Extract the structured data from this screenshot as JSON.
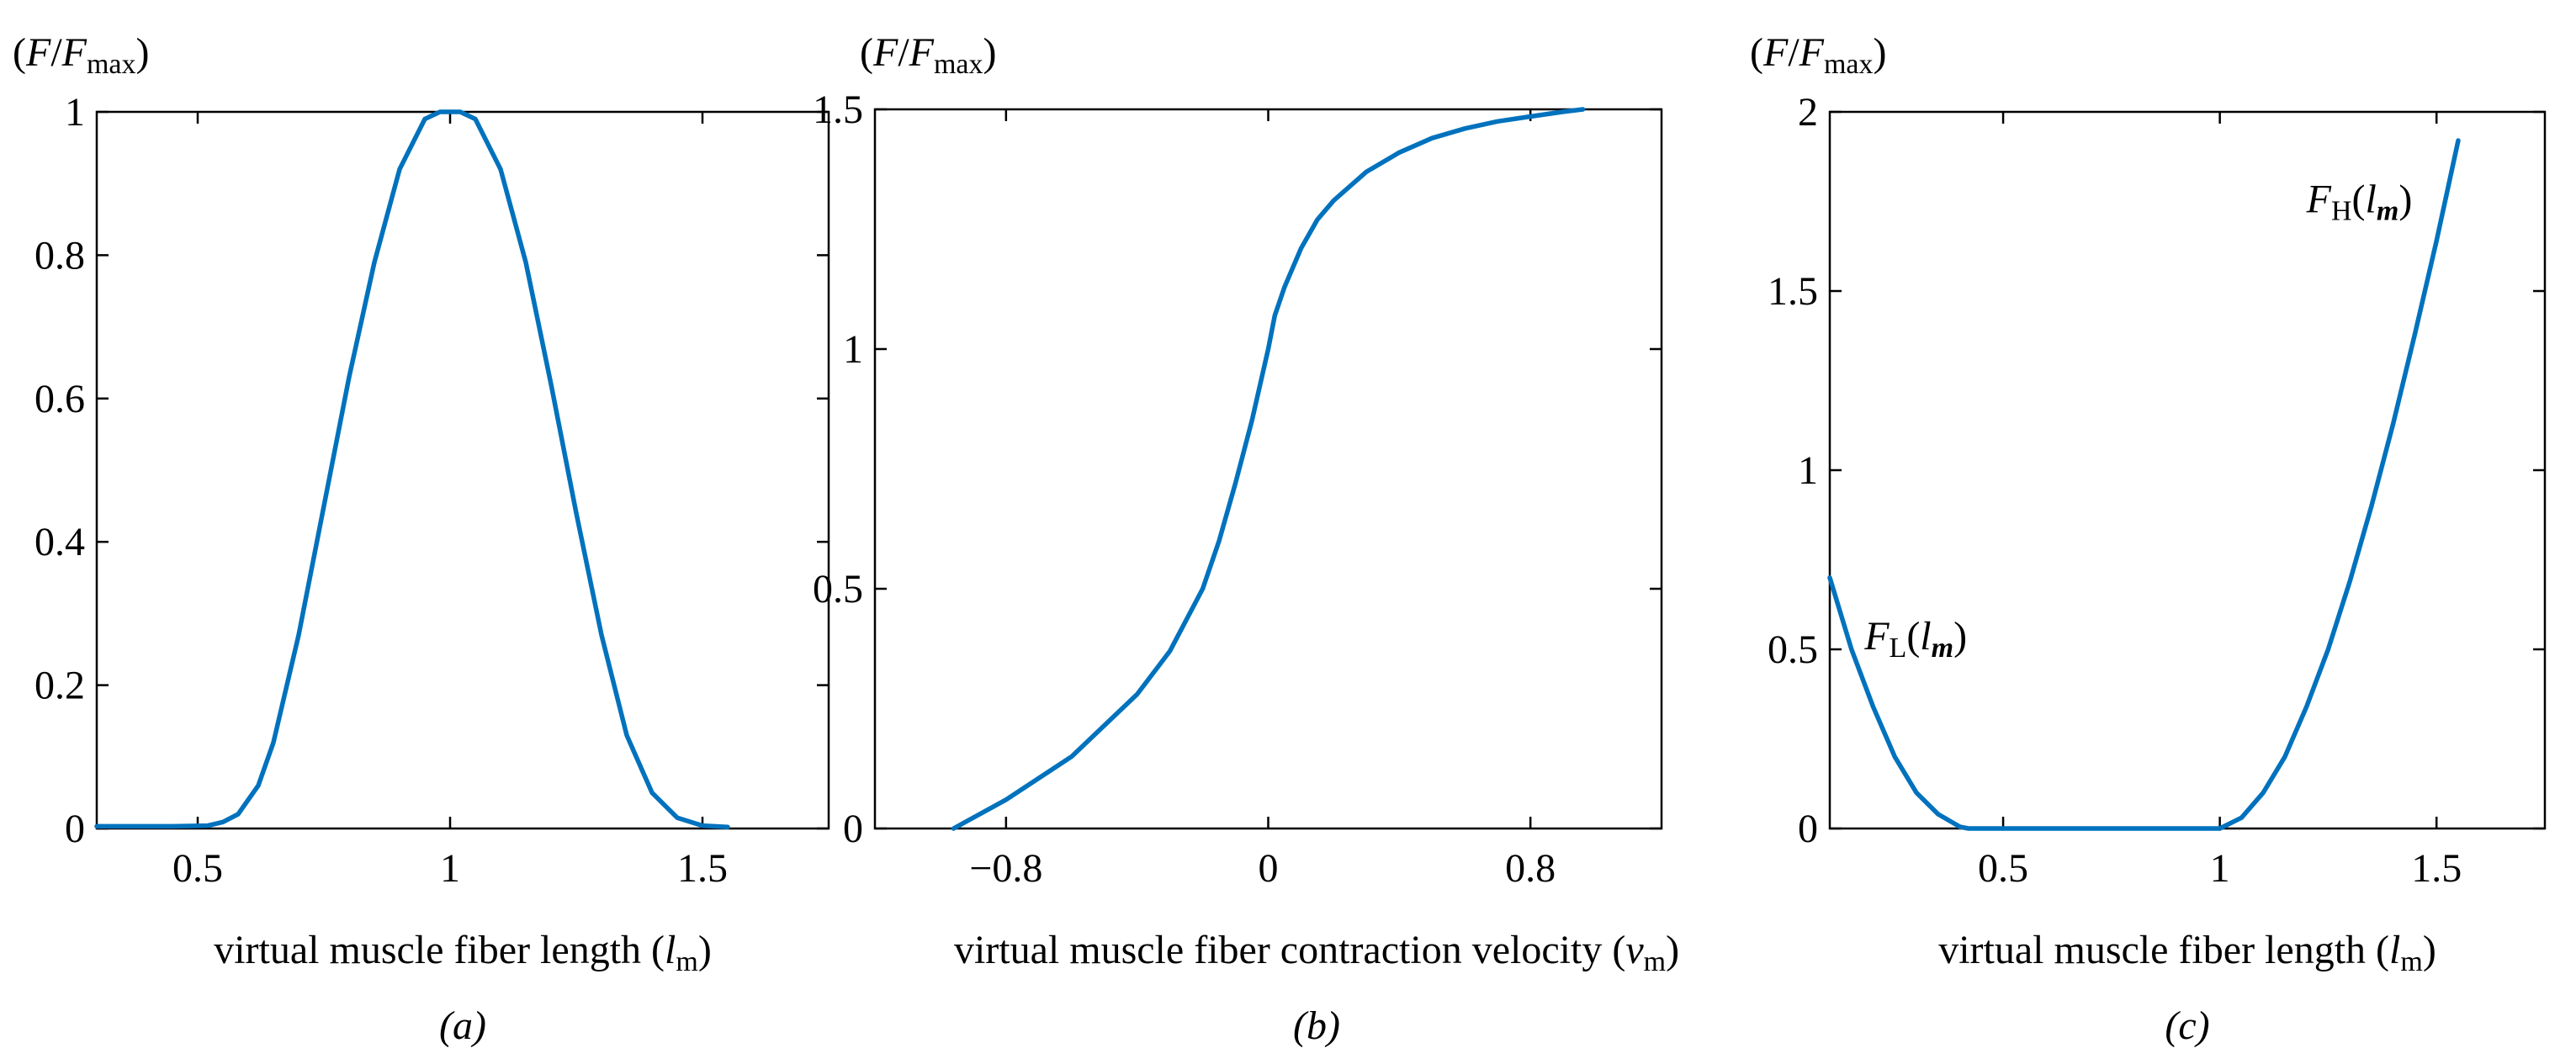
{
  "chart_data": [
    {
      "type": "line",
      "panel": "(a)",
      "ylabel_html": "(<tspan font-style=\"italic\">F</tspan>/<tspan font-style=\"italic\">F</tspan><tspan font-size=\"34\" dy=\"9\">max</tspan><tspan dy=\"-9\">)</tspan>",
      "xlabel_html": "virtual muscle fiber length (<tspan font-style=\"italic\">l</tspan><tspan font-size=\"34\" dy=\"9\">m</tspan><tspan dy=\"-9\">)</tspan>",
      "xlim": [
        0.3,
        1.75
      ],
      "ylim": [
        0,
        1.0
      ],
      "xticks": [
        0.5,
        1,
        1.5
      ],
      "xtick_labels": [
        "0.5",
        "1",
        "1.5"
      ],
      "yticks": [
        0,
        0.2,
        0.4,
        0.6,
        0.8,
        1
      ],
      "ytick_labels": [
        "0",
        "0.2",
        "0.4",
        "0.6",
        "0.8",
        "1"
      ],
      "series": [
        {
          "color": "#0072BD",
          "x": [
            0.3,
            0.45,
            0.52,
            0.55,
            0.58,
            0.62,
            0.65,
            0.7,
            0.75,
            0.8,
            0.85,
            0.9,
            0.95,
            0.98,
            1.02,
            1.05,
            1.1,
            1.15,
            1.2,
            1.25,
            1.3,
            1.35,
            1.4,
            1.45,
            1.5,
            1.55
          ],
          "y": [
            0.003,
            0.003,
            0.004,
            0.009,
            0.02,
            0.06,
            0.12,
            0.27,
            0.45,
            0.63,
            0.79,
            0.92,
            0.99,
            1.0,
            1.0,
            0.99,
            0.92,
            0.79,
            0.62,
            0.44,
            0.27,
            0.13,
            0.05,
            0.015,
            0.004,
            0.002
          ]
        }
      ]
    },
    {
      "type": "line",
      "panel": "(b)",
      "ylabel_html": "(<tspan font-style=\"italic\">F</tspan>/<tspan font-style=\"italic\">F</tspan><tspan font-size=\"34\" dy=\"9\">max</tspan><tspan dy=\"-9\">)</tspan>",
      "xlabel_html": "virtual muscle fiber contraction velocity (<tspan font-style=\"italic\">v</tspan><tspan font-size=\"34\" dy=\"9\">m</tspan><tspan dy=\"-9\">)</tspan>",
      "xlim": [
        -1.2,
        1.2
      ],
      "ylim": [
        0,
        1.5
      ],
      "xticks": [
        -0.8,
        0,
        0.8
      ],
      "xtick_labels": [
        "−0.8",
        "0",
        "0.8"
      ],
      "yticks": [
        0,
        0.5,
        1,
        1.5
      ],
      "ytick_labels": [
        "0",
        "0.5",
        "1",
        "1.5"
      ],
      "series": [
        {
          "color": "#0072BD",
          "x": [
            -0.96,
            -0.8,
            -0.6,
            -0.4,
            -0.3,
            -0.2,
            -0.15,
            -0.1,
            -0.05,
            -0.02,
            0,
            0.02,
            0.05,
            0.1,
            0.15,
            0.2,
            0.3,
            0.4,
            0.5,
            0.6,
            0.7,
            0.8,
            0.9,
            0.96
          ],
          "y": [
            0.0,
            0.06,
            0.15,
            0.28,
            0.37,
            0.5,
            0.6,
            0.72,
            0.85,
            0.94,
            1.0,
            1.07,
            1.13,
            1.21,
            1.27,
            1.31,
            1.37,
            1.41,
            1.44,
            1.46,
            1.475,
            1.485,
            1.495,
            1.5
          ]
        }
      ]
    },
    {
      "type": "line",
      "panel": "(c)",
      "ylabel_html": "(<tspan font-style=\"italic\">F</tspan>/<tspan font-style=\"italic\">F</tspan><tspan font-size=\"34\" dy=\"9\">max</tspan><tspan dy=\"-9\">)</tspan>",
      "xlabel_html": "virtual muscle fiber length (<tspan font-style=\"italic\">l</tspan><tspan font-size=\"34\" dy=\"9\">m</tspan><tspan dy=\"-9\">)</tspan>",
      "xlim": [
        0.1,
        1.75
      ],
      "ylim": [
        0,
        2.0
      ],
      "xticks": [
        0.5,
        1,
        1.5
      ],
      "xtick_labels": [
        "0.5",
        "1",
        "1.5"
      ],
      "yticks": [
        0,
        0.5,
        1,
        1.5,
        2
      ],
      "ytick_labels": [
        "0",
        "0.5",
        "1",
        "1.5",
        "2"
      ],
      "series": [
        {
          "name": "FL(lm)",
          "color": "#0072BD",
          "x": [
            0.1,
            0.15,
            0.2,
            0.25,
            0.3,
            0.35,
            0.4,
            0.42,
            0.45,
            1.0
          ],
          "y": [
            0.7,
            0.5,
            0.34,
            0.2,
            0.1,
            0.04,
            0.005,
            0.0,
            0.0,
            0.0
          ]
        },
        {
          "name": "FH(lm)",
          "color": "#0072BD",
          "x": [
            1.0,
            1.05,
            1.1,
            1.15,
            1.2,
            1.25,
            1.3,
            1.35,
            1.4,
            1.45,
            1.5,
            1.55
          ],
          "y": [
            0.0,
            0.03,
            0.1,
            0.2,
            0.34,
            0.5,
            0.69,
            0.9,
            1.13,
            1.38,
            1.64,
            1.92
          ]
        }
      ],
      "annotations": [
        {
          "html": "<tspan font-style=\"italic\">F</tspan><tspan font-size=\"34\" dy=\"9\">L</tspan><tspan dy=\"-9\">(</tspan><tspan font-style=\"italic\">l</tspan><tspan font-size=\"34\" dy=\"9\" font-style=\"italic\" font-weight=\"bold\">m</tspan><tspan dy=\"-9\">)</tspan>",
          "x": 0.18,
          "y": 0.5
        },
        {
          "html": "<tspan font-style=\"italic\">F</tspan><tspan font-size=\"34\" dy=\"9\">H</tspan><tspan dy=\"-9\">(</tspan><tspan font-style=\"italic\">l</tspan><tspan font-size=\"34\" dy=\"9\" font-style=\"italic\" font-weight=\"bold\">m</tspan><tspan dy=\"-9\">)</tspan>",
          "x": 1.2,
          "y": 1.72
        }
      ]
    }
  ]
}
